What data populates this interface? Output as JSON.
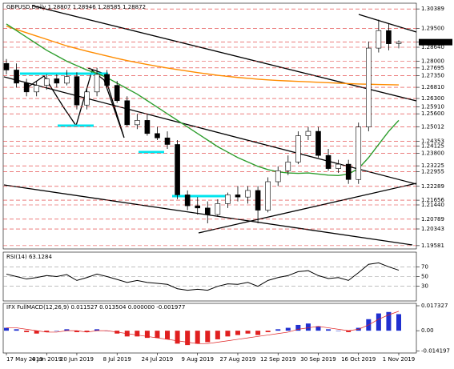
{
  "chart_data": {
    "type": "candlestick",
    "title": "GBPUSD,Daily  1.28807 1.28946 1.28585 1.28872",
    "categories": [
      "17 May 2019",
      null,
      null,
      null,
      "4 Jun 2019",
      null,
      null,
      "20 Jun 2019",
      null,
      null,
      null,
      "8 Jul 2019",
      null,
      null,
      null,
      "24 Jul 2019",
      null,
      null,
      null,
      "9 Aug 2019",
      null,
      null,
      null,
      "27 Aug 2019",
      null,
      null,
      null,
      "12 Sep 2019",
      null,
      null,
      null,
      "30 Sep 2019",
      null,
      null,
      null,
      "16 Oct 2019",
      null,
      null,
      null,
      "1 Nov 2019"
    ],
    "open": [
      1.279,
      1.276,
      1.27,
      1.266,
      1.269,
      1.272,
      1.27,
      1.273,
      1.26,
      1.266,
      1.274,
      1.269,
      1.262,
      1.251,
      1.253,
      1.247,
      1.245,
      1.242,
      1.219,
      1.214,
      1.213,
      1.21,
      1.215,
      1.219,
      1.218,
      1.221,
      1.212,
      1.225,
      1.23,
      1.234,
      1.246,
      1.248,
      1.237,
      1.231,
      1.233,
      1.226,
      1.25,
      1.286,
      1.294,
      1.2881
    ],
    "high": [
      1.281,
      1.279,
      1.272,
      1.271,
      1.274,
      1.274,
      1.276,
      1.275,
      1.268,
      1.277,
      1.276,
      1.271,
      1.264,
      1.256,
      1.256,
      1.25,
      1.248,
      1.244,
      1.221,
      1.218,
      1.216,
      1.217,
      1.22,
      1.223,
      1.223,
      1.223,
      1.227,
      1.232,
      1.237,
      1.248,
      1.25,
      1.25,
      1.24,
      1.235,
      1.235,
      1.252,
      1.289,
      1.299,
      1.297,
      1.2895
    ],
    "low": [
      1.274,
      1.268,
      1.264,
      1.264,
      1.267,
      1.268,
      1.269,
      1.258,
      1.258,
      1.264,
      1.268,
      1.261,
      1.25,
      1.249,
      1.246,
      1.244,
      1.24,
      1.217,
      1.212,
      1.21,
      1.206,
      1.209,
      1.213,
      1.216,
      1.215,
      1.206,
      1.211,
      1.223,
      1.228,
      1.233,
      1.244,
      1.236,
      1.23,
      1.229,
      1.224,
      1.224,
      1.248,
      1.284,
      1.285,
      1.2859
    ],
    "close": [
      1.276,
      1.27,
      1.266,
      1.269,
      1.272,
      1.27,
      1.273,
      1.26,
      1.266,
      1.274,
      1.269,
      1.262,
      1.251,
      1.253,
      1.247,
      1.245,
      1.242,
      1.219,
      1.214,
      1.213,
      1.21,
      1.215,
      1.219,
      1.218,
      1.221,
      1.212,
      1.225,
      1.23,
      1.234,
      1.246,
      1.248,
      1.237,
      1.231,
      1.233,
      1.226,
      1.25,
      1.286,
      1.294,
      1.288,
      1.28872
    ],
    "series": [
      {
        "name": "MA200",
        "color": "#ff8c00",
        "values": [
          1.296,
          1.2945,
          1.293,
          1.2915,
          1.29,
          1.2885,
          1.287,
          1.2858,
          1.2846,
          1.2835,
          1.2824,
          1.2813,
          1.2803,
          1.2794,
          1.2785,
          1.2777,
          1.2769,
          1.2762,
          1.2755,
          1.2748,
          1.2742,
          1.2736,
          1.2731,
          1.2726,
          1.2722,
          1.2718,
          1.2715,
          1.2712,
          1.271,
          1.2708,
          1.2706,
          1.2704,
          1.2702,
          1.27,
          1.2698,
          1.2696,
          1.2695,
          1.2694,
          1.2693,
          1.2692
        ]
      },
      {
        "name": "MA50",
        "color": "#2e9e2e",
        "values": [
          1.297,
          1.294,
          1.291,
          1.288,
          1.285,
          1.2825,
          1.28,
          1.278,
          1.276,
          1.2745,
          1.2725,
          1.27,
          1.2675,
          1.265,
          1.262,
          1.259,
          1.256,
          1.253,
          1.25,
          1.247,
          1.244,
          1.241,
          1.2385,
          1.236,
          1.234,
          1.232,
          1.2305,
          1.2295,
          1.229,
          1.2288,
          1.229,
          1.2285,
          1.228,
          1.2278,
          1.2285,
          1.231,
          1.236,
          1.242,
          1.248,
          1.253
        ]
      }
    ],
    "ylim": [
      1.1943,
      1.3065
    ],
    "yticks": [
      1.30389,
      {
        "value": 1.295,
        "label": "1.29500"
      },
      1.28872,
      {
        "value": 1.2864,
        "label": "1.28640"
      },
      {
        "value": 1.28,
        "label": "1.28000"
      },
      1.27695,
      {
        "value": 1.2735,
        "label": "1.27350"
      },
      {
        "value": 1.2681,
        "label": "1.26810"
      },
      {
        "value": 1.263,
        "label": "1.26300"
      },
      {
        "value": 1.2591,
        "label": "1.25910"
      },
      {
        "value": 1.256,
        "label": "1.25600"
      },
      1.25012,
      1.24353,
      1.24125,
      {
        "value": 1.238,
        "label": "1.23800"
      },
      1.23225,
      1.22955,
      1.22289,
      1.21656,
      {
        "value": 1.2144,
        "label": "1.21440"
      },
      1.20789,
      1.20343,
      1.19581
    ],
    "up_color": "#ffffff",
    "down_color": "#000000",
    "grid_color": "#e03030",
    "grid": true,
    "rsi": {
      "title": "RSI(14) 63.1284",
      "color": "#000000",
      "values": [
        55,
        50,
        45,
        48,
        52,
        50,
        54,
        42,
        48,
        55,
        50,
        44,
        38,
        42,
        38,
        36,
        34,
        25,
        22,
        24,
        22,
        30,
        35,
        34,
        38,
        30,
        42,
        48,
        52,
        60,
        62,
        52,
        46,
        48,
        42,
        58,
        75,
        78,
        70,
        63
      ],
      "ylim": [
        0,
        100
      ],
      "yticks": [
        70,
        50,
        30
      ]
    },
    "macd": {
      "title": "IFX FullMACD(12,26,9) 0.011527 0.013504 0.000000 -0.001977",
      "pos_color": "#2030d0",
      "neg_color": "#e02020",
      "values": [
        0.002,
        0.001,
        -0.001,
        -0.002,
        -0.001,
        0,
        0.001,
        -0.001,
        -0.001,
        0.001,
        0,
        -0.002,
        -0.004,
        -0.004,
        -0.005,
        -0.005,
        -0.006,
        -0.009,
        -0.01,
        -0.009,
        -0.008,
        -0.006,
        -0.004,
        -0.003,
        -0.002,
        -0.003,
        -0.001,
        0.001,
        0.002,
        0.004,
        0.005,
        0.003,
        0.001,
        0,
        -0.001,
        0.002,
        0.008,
        0.012,
        0.013,
        0.0115
      ],
      "signal": {
        "color": "#e02020",
        "values": [
          0.002,
          0.002,
          0.001,
          0,
          -0.001,
          -0.001,
          0,
          0,
          -0.001,
          0,
          0,
          -0.001,
          -0.002,
          -0.003,
          -0.004,
          -0.005,
          -0.006,
          -0.007,
          -0.008,
          -0.009,
          -0.009,
          -0.008,
          -0.007,
          -0.006,
          -0.005,
          -0.004,
          -0.003,
          -0.002,
          -0.001,
          0.001,
          0.002,
          0.003,
          0.002,
          0.001,
          0,
          0.001,
          0.004,
          0.008,
          0.011,
          0.0135
        ]
      },
      "ylim": [
        -0.0155,
        0.019
      ],
      "yticks": [
        0.017327,
        {
          "value": 0,
          "label": "0.00"
        },
        -0.014197
      ]
    }
  }
}
